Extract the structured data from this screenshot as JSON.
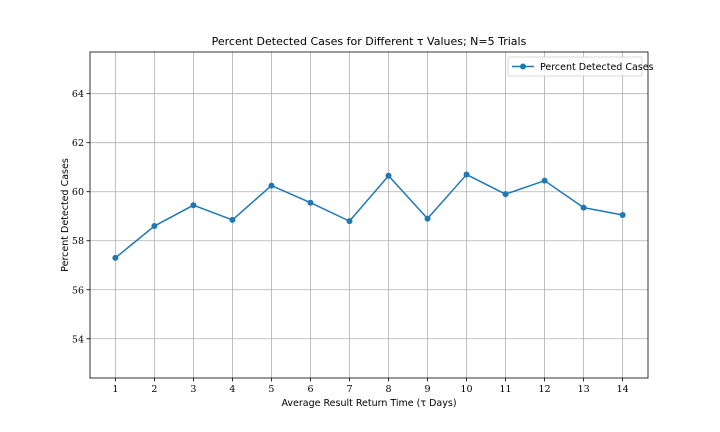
{
  "chart_data": {
    "type": "line",
    "title": "Percent Detected Cases for Different τ Values; N=5 Trials",
    "xlabel": "Average Result Return Time (τ Days)",
    "ylabel": "Percent Detected Cases",
    "x": [
      1,
      2,
      3,
      4,
      5,
      6,
      7,
      8,
      9,
      10,
      11,
      12,
      13,
      14
    ],
    "x_tick_labels": [
      "1",
      "2",
      "3",
      "4",
      "5",
      "6",
      "7",
      "8",
      "9",
      "10",
      "11",
      "12",
      "13",
      "14"
    ],
    "y_ticks": [
      54,
      56,
      58,
      60,
      62,
      64
    ],
    "y_tick_labels": [
      "54",
      "56",
      "58",
      "60",
      "62",
      "64"
    ],
    "xlim": [
      0.35,
      14.65
    ],
    "ylim": [
      52.4,
      65.7
    ],
    "grid": true,
    "legend_position": "top-right",
    "series": [
      {
        "name": "Percent Detected Cases",
        "color": "#1f77b4",
        "marker": "circle",
        "values": [
          57.3,
          58.6,
          59.45,
          58.85,
          60.25,
          59.55,
          58.8,
          60.65,
          58.9,
          60.7,
          59.9,
          60.45,
          59.35,
          59.05
        ]
      }
    ]
  }
}
